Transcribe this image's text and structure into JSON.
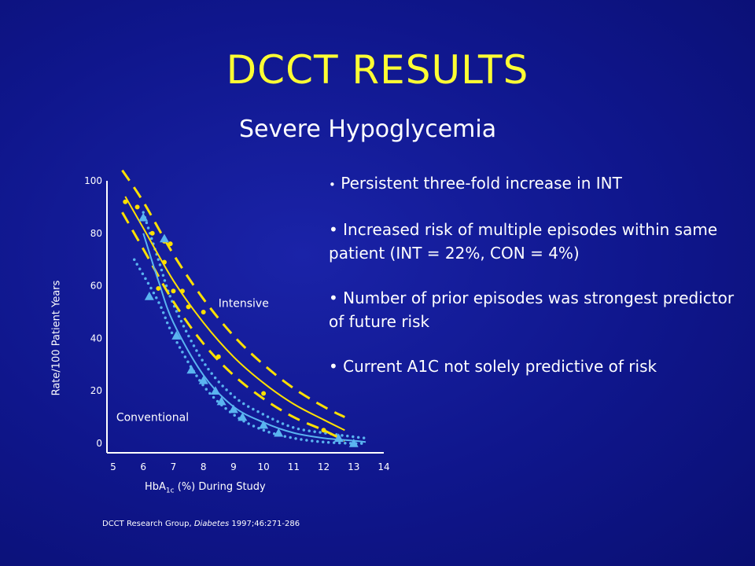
{
  "slide": {
    "title": "DCCT RESULTS",
    "subtitle": "Severe Hypoglycemia",
    "bullets": [
      "Persistent three-fold increase in INT",
      "Increased risk of multiple episodes within same patient  (INT = 22%, CON = 4%)",
      "Number of prior episodes was strongest predictor of future risk",
      "Current A1C not solely predictive of risk"
    ],
    "footnote": {
      "prefix": "DCCT Research Group, ",
      "journal": "Diabetes",
      "suffix": " 1997;46:271-286"
    }
  },
  "colors": {
    "background": "#0f168c",
    "title": "#ffff33",
    "intensive": "#ffe000",
    "conventional": "#5ab4f0",
    "axis": "#ffffff"
  },
  "chart_data": {
    "type": "scatter",
    "title": "",
    "xlabel_main": "HbA",
    "xlabel_sub": "1c",
    "xlabel_rest": " (%) During Study",
    "ylabel": "Rate/100 Patient Years",
    "xlim": [
      5,
      14
    ],
    "ylim": [
      0,
      100
    ],
    "xticks": [
      5,
      6,
      7,
      8,
      9,
      10,
      11,
      12,
      13,
      14
    ],
    "yticks": [
      0,
      20,
      40,
      60,
      80,
      100
    ],
    "series": [
      {
        "name": "Intensive",
        "marker": "circle",
        "points": [
          [
            5.4,
            92
          ],
          [
            5.8,
            90
          ],
          [
            6.3,
            80
          ],
          [
            6.7,
            77
          ],
          [
            6.9,
            76
          ],
          [
            6.7,
            69
          ],
          [
            6.5,
            59
          ],
          [
            7.0,
            58
          ],
          [
            7.3,
            58
          ],
          [
            7.5,
            52
          ],
          [
            8.0,
            50
          ],
          [
            8.5,
            33
          ],
          [
            10.0,
            19
          ],
          [
            12.0,
            5
          ]
        ],
        "fit": [
          [
            5.4,
            94
          ],
          [
            6,
            82
          ],
          [
            7,
            62
          ],
          [
            8,
            46
          ],
          [
            9,
            33
          ],
          [
            10,
            23
          ],
          [
            11,
            15
          ],
          [
            12,
            9
          ],
          [
            12.7,
            5
          ]
        ],
        "ci_upper": [
          [
            5.3,
            104
          ],
          [
            6,
            92
          ],
          [
            7,
            72
          ],
          [
            8,
            55
          ],
          [
            9,
            41
          ],
          [
            10,
            30
          ],
          [
            11,
            21
          ],
          [
            12,
            14
          ],
          [
            12.7,
            10
          ]
        ],
        "ci_lower": [
          [
            5.3,
            88
          ],
          [
            6,
            74
          ],
          [
            7,
            54
          ],
          [
            8,
            38
          ],
          [
            9,
            26
          ],
          [
            10,
            17
          ],
          [
            11,
            10
          ],
          [
            12,
            5
          ],
          [
            12.7,
            1
          ]
        ]
      },
      {
        "name": "Conventional",
        "marker": "triangle",
        "points": [
          [
            6.0,
            86
          ],
          [
            6.2,
            56
          ],
          [
            6.7,
            78
          ],
          [
            7.1,
            41
          ],
          [
            7.6,
            28
          ],
          [
            8.0,
            24
          ],
          [
            8.4,
            20
          ],
          [
            8.6,
            16
          ],
          [
            9.0,
            13
          ],
          [
            9.3,
            10
          ],
          [
            10.0,
            7
          ],
          [
            10.5,
            4
          ],
          [
            12.5,
            2
          ],
          [
            13.0,
            0
          ]
        ],
        "fit": [
          [
            6.0,
            80
          ],
          [
            6.5,
            62
          ],
          [
            7,
            46
          ],
          [
            8,
            26
          ],
          [
            9,
            14
          ],
          [
            10,
            8
          ],
          [
            11,
            4
          ],
          [
            12,
            2
          ],
          [
            13,
            1
          ],
          [
            13.4,
            0.5
          ]
        ],
        "ci_upper": [
          [
            6.0,
            88
          ],
          [
            6.5,
            70
          ],
          [
            7,
            53
          ],
          [
            8,
            31
          ],
          [
            9,
            18
          ],
          [
            10,
            11
          ],
          [
            11,
            6
          ],
          [
            12,
            4
          ],
          [
            13,
            2.5
          ],
          [
            13.4,
            2
          ]
        ],
        "ci_lower": [
          [
            5.7,
            70
          ],
          [
            6.5,
            54
          ],
          [
            7,
            41
          ],
          [
            8,
            22
          ],
          [
            9,
            11
          ],
          [
            10,
            5
          ],
          [
            11,
            2
          ],
          [
            12,
            0.5
          ],
          [
            13,
            0
          ],
          [
            13.4,
            0
          ]
        ]
      }
    ]
  }
}
